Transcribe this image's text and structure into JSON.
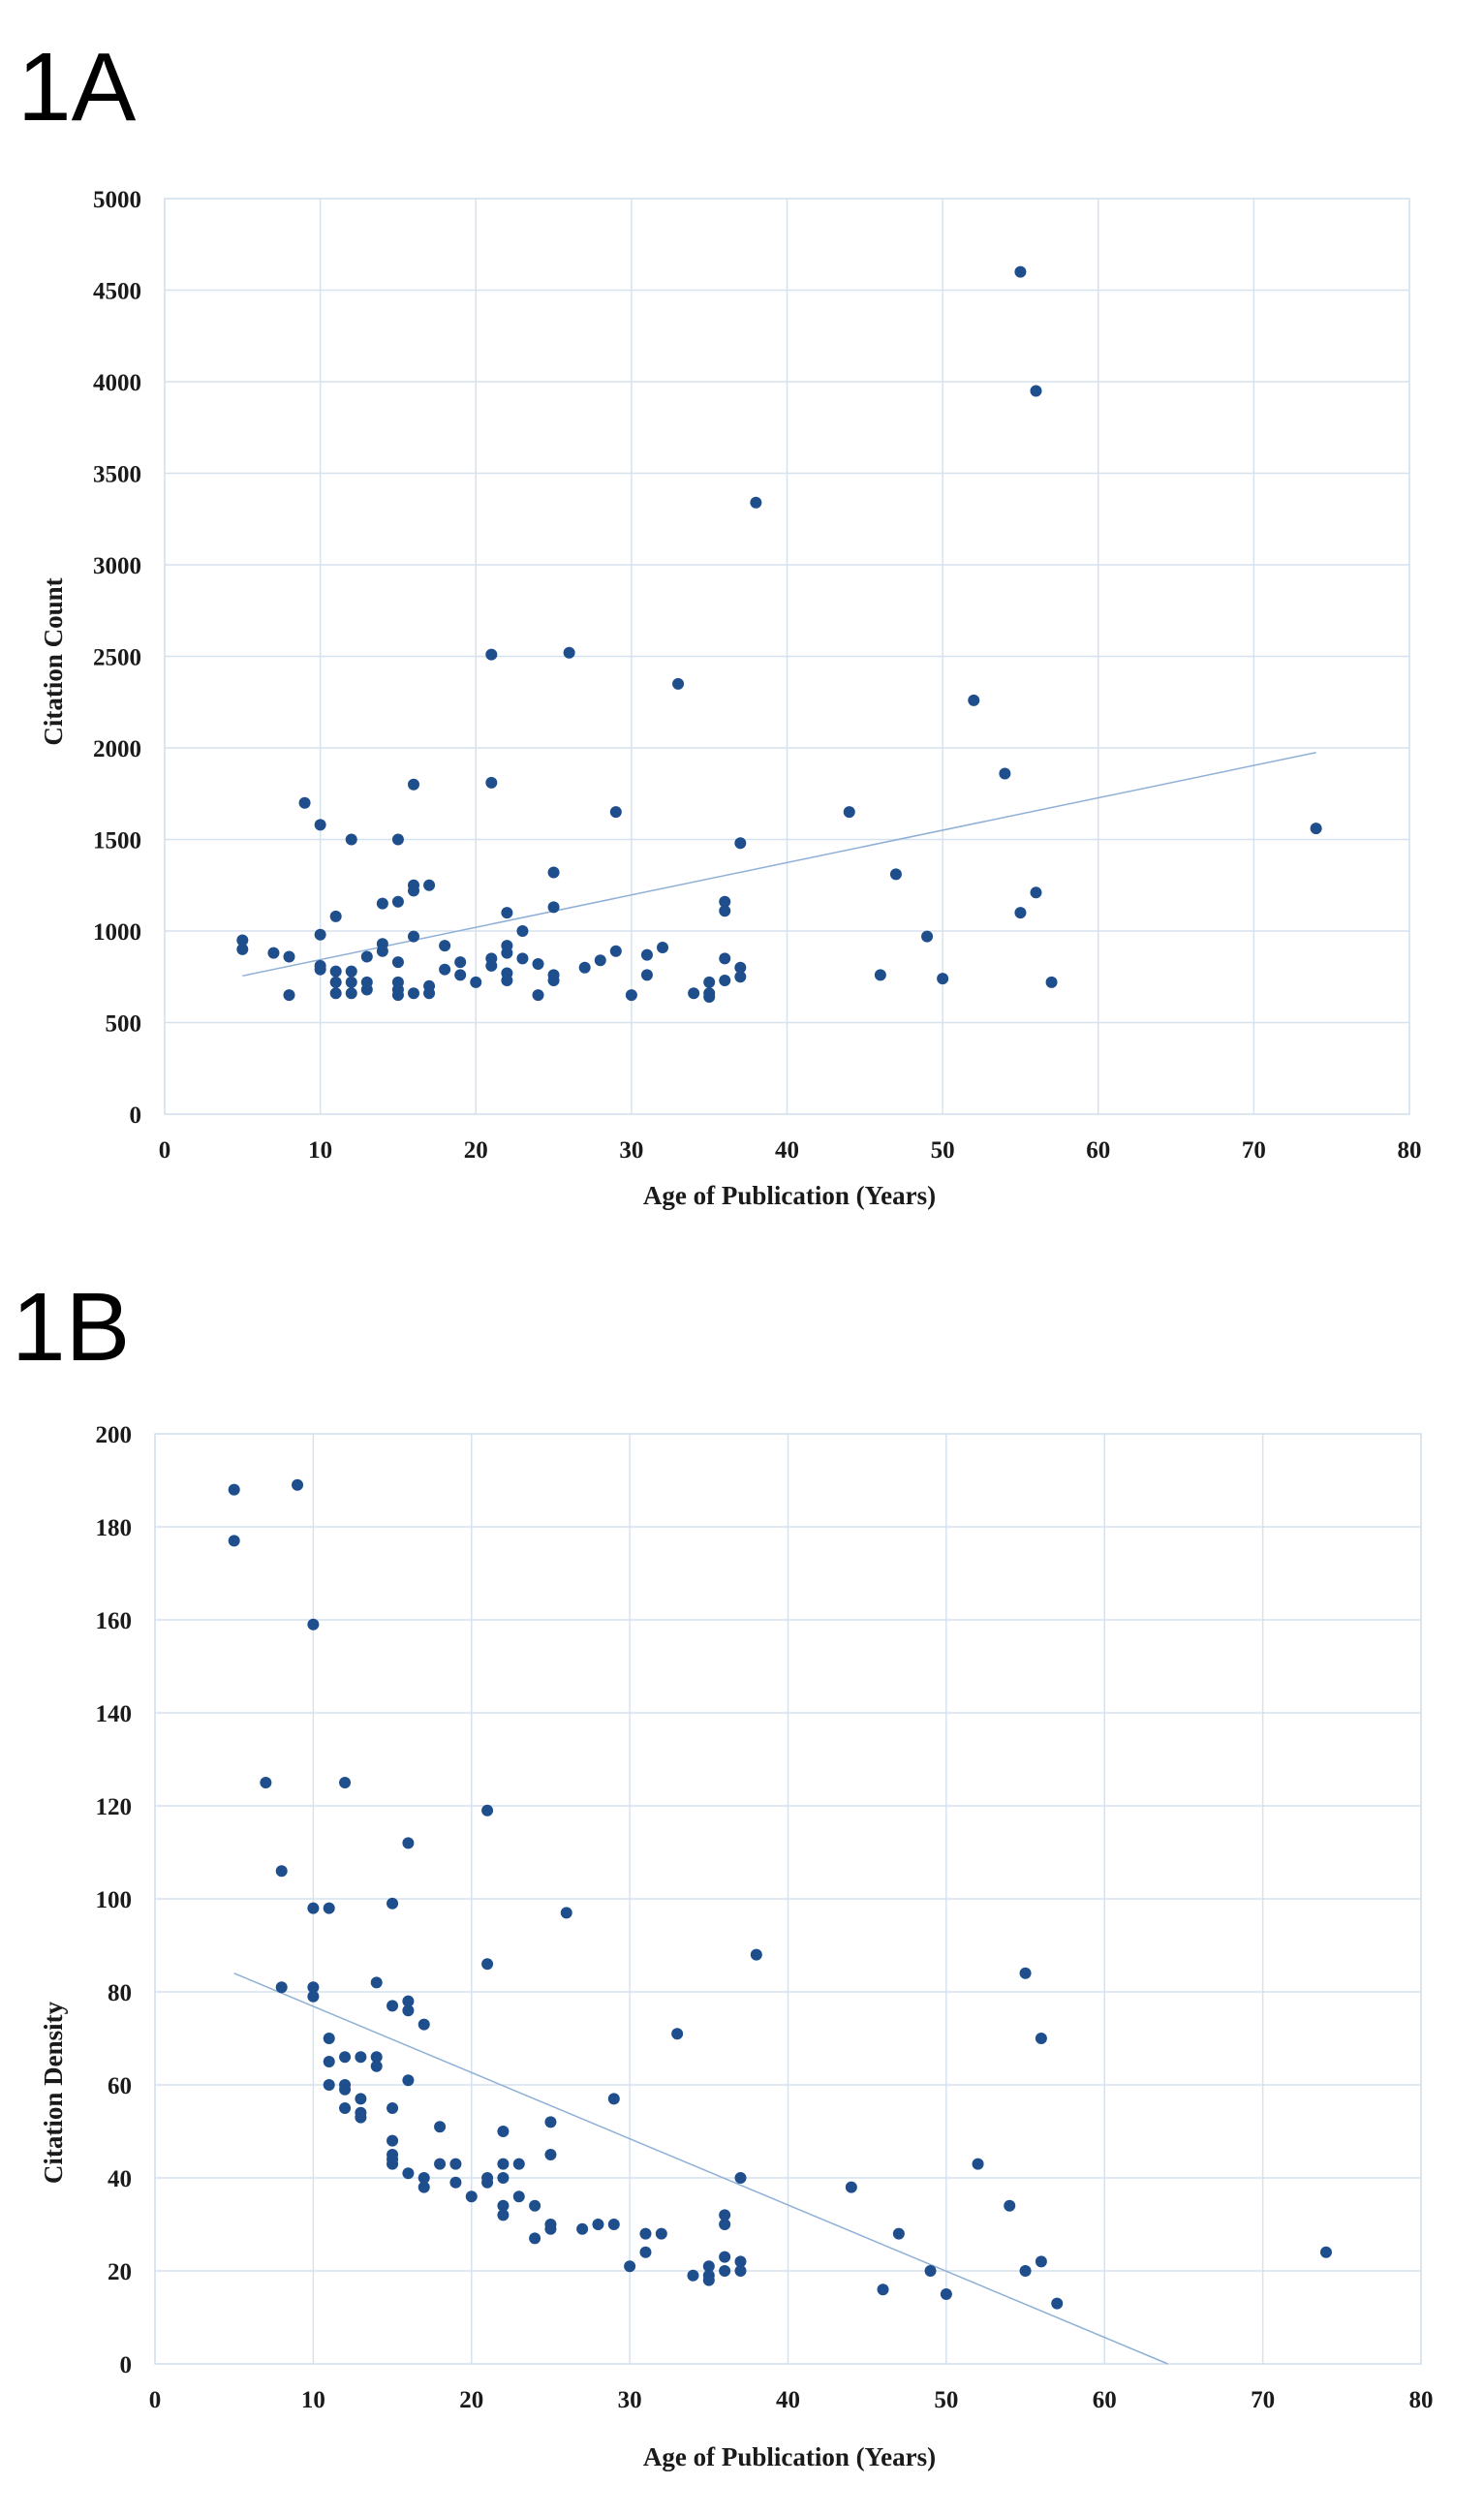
{
  "panels": {
    "a": "1A",
    "b": "1B"
  },
  "chart_data": [
    {
      "type": "scatter",
      "panel": "1A",
      "title": "",
      "xlabel": "Age of Publication  (Years)",
      "ylabel": "Citation Count",
      "xlim": [
        0,
        80
      ],
      "ylim": [
        0,
        5000
      ],
      "xticks": [
        0,
        10,
        20,
        30,
        40,
        50,
        60,
        70,
        80
      ],
      "yticks": [
        0,
        500,
        1000,
        1500,
        2000,
        2500,
        3000,
        3500,
        4000,
        4500,
        5000
      ],
      "grid": true,
      "marker_color": "#1f4e8c",
      "trendline": {
        "x": [
          5,
          74
        ],
        "y": [
          755,
          1975
        ],
        "color": "#8fb0d6"
      },
      "points": [
        [
          5,
          950
        ],
        [
          5,
          900
        ],
        [
          7,
          880
        ],
        [
          8,
          860
        ],
        [
          8,
          650
        ],
        [
          9,
          1700
        ],
        [
          10,
          1580
        ],
        [
          10,
          980
        ],
        [
          10,
          810
        ],
        [
          10,
          790
        ],
        [
          11,
          1080
        ],
        [
          11,
          780
        ],
        [
          11,
          720
        ],
        [
          11,
          660
        ],
        [
          12,
          1500
        ],
        [
          12,
          780
        ],
        [
          12,
          720
        ],
        [
          12,
          660
        ],
        [
          13,
          860
        ],
        [
          13,
          720
        ],
        [
          13,
          680
        ],
        [
          14,
          1150
        ],
        [
          14,
          930
        ],
        [
          14,
          890
        ],
        [
          15,
          1500
        ],
        [
          15,
          1160
        ],
        [
          15,
          830
        ],
        [
          15,
          720
        ],
        [
          15,
          680
        ],
        [
          15,
          650
        ],
        [
          16,
          1800
        ],
        [
          16,
          1250
        ],
        [
          16,
          1220
        ],
        [
          16,
          970
        ],
        [
          16,
          660
        ],
        [
          17,
          1250
        ],
        [
          17,
          700
        ],
        [
          17,
          660
        ],
        [
          18,
          920
        ],
        [
          18,
          790
        ],
        [
          19,
          830
        ],
        [
          19,
          760
        ],
        [
          20,
          720
        ],
        [
          21,
          2510
        ],
        [
          21,
          1810
        ],
        [
          21,
          850
        ],
        [
          21,
          810
        ],
        [
          22,
          1100
        ],
        [
          22,
          920
        ],
        [
          22,
          880
        ],
        [
          22,
          770
        ],
        [
          22,
          730
        ],
        [
          23,
          1000
        ],
        [
          23,
          850
        ],
        [
          24,
          820
        ],
        [
          24,
          650
        ],
        [
          25,
          1320
        ],
        [
          25,
          1130
        ],
        [
          25,
          760
        ],
        [
          25,
          730
        ],
        [
          26,
          2520
        ],
        [
          27,
          800
        ],
        [
          28,
          840
        ],
        [
          29,
          1650
        ],
        [
          29,
          890
        ],
        [
          30,
          650
        ],
        [
          31,
          870
        ],
        [
          31,
          760
        ],
        [
          32,
          910
        ],
        [
          33,
          2350
        ],
        [
          34,
          660
        ],
        [
          35,
          720
        ],
        [
          35,
          660
        ],
        [
          35,
          640
        ],
        [
          36,
          1160
        ],
        [
          36,
          1110
        ],
        [
          36,
          850
        ],
        [
          36,
          730
        ],
        [
          37,
          1480
        ],
        [
          37,
          800
        ],
        [
          37,
          750
        ],
        [
          38,
          3340
        ],
        [
          44,
          1650
        ],
        [
          46,
          760
        ],
        [
          47,
          1310
        ],
        [
          49,
          970
        ],
        [
          50,
          740
        ],
        [
          52,
          2260
        ],
        [
          54,
          1860
        ],
        [
          55,
          4600
        ],
        [
          55,
          1100
        ],
        [
          56,
          3950
        ],
        [
          56,
          1210
        ],
        [
          57,
          720
        ],
        [
          74,
          1560
        ]
      ]
    },
    {
      "type": "scatter",
      "panel": "1B",
      "title": "",
      "xlabel": "Age of Publication  (Years)",
      "ylabel": "Citation Density",
      "xlim": [
        0,
        80
      ],
      "ylim": [
        0,
        200
      ],
      "xticks": [
        0,
        10,
        20,
        30,
        40,
        50,
        60,
        70,
        80
      ],
      "yticks": [
        0,
        20,
        40,
        60,
        80,
        100,
        120,
        140,
        160,
        180,
        200
      ],
      "grid": true,
      "marker_color": "#1f4e8c",
      "trendline": {
        "x": [
          5,
          64
        ],
        "y": [
          84,
          0
        ],
        "color": "#8fb0d6"
      },
      "points": [
        [
          5,
          188
        ],
        [
          5,
          177
        ],
        [
          7,
          125
        ],
        [
          8,
          106
        ],
        [
          8,
          81
        ],
        [
          9,
          189
        ],
        [
          10,
          159
        ],
        [
          10,
          98
        ],
        [
          10,
          81
        ],
        [
          10,
          79
        ],
        [
          11,
          98
        ],
        [
          11,
          70
        ],
        [
          11,
          65
        ],
        [
          11,
          60
        ],
        [
          12,
          125
        ],
        [
          12,
          66
        ],
        [
          12,
          60
        ],
        [
          12,
          59
        ],
        [
          12,
          55
        ],
        [
          13,
          66
        ],
        [
          13,
          57
        ],
        [
          13,
          54
        ],
        [
          13,
          53
        ],
        [
          14,
          82
        ],
        [
          14,
          66
        ],
        [
          14,
          64
        ],
        [
          15,
          99
        ],
        [
          15,
          77
        ],
        [
          15,
          55
        ],
        [
          15,
          48
        ],
        [
          15,
          45
        ],
        [
          15,
          44
        ],
        [
          15,
          43
        ],
        [
          16,
          112
        ],
        [
          16,
          78
        ],
        [
          16,
          76
        ],
        [
          16,
          61
        ],
        [
          16,
          41
        ],
        [
          17,
          73
        ],
        [
          17,
          40
        ],
        [
          17,
          38
        ],
        [
          18,
          51
        ],
        [
          18,
          43
        ],
        [
          19,
          43
        ],
        [
          19,
          39
        ],
        [
          20,
          36
        ],
        [
          21,
          119
        ],
        [
          21,
          86
        ],
        [
          21,
          40
        ],
        [
          21,
          39
        ],
        [
          22,
          50
        ],
        [
          22,
          43
        ],
        [
          22,
          40
        ],
        [
          22,
          34
        ],
        [
          22,
          32
        ],
        [
          23,
          43
        ],
        [
          23,
          36
        ],
        [
          24,
          34
        ],
        [
          24,
          27
        ],
        [
          25,
          52
        ],
        [
          25,
          45
        ],
        [
          25,
          30
        ],
        [
          25,
          29
        ],
        [
          26,
          97
        ],
        [
          27,
          29
        ],
        [
          28,
          30
        ],
        [
          29,
          57
        ],
        [
          29,
          30
        ],
        [
          30,
          21
        ],
        [
          31,
          28
        ],
        [
          31,
          24
        ],
        [
          32,
          28
        ],
        [
          33,
          71
        ],
        [
          34,
          19
        ],
        [
          35,
          21
        ],
        [
          35,
          19
        ],
        [
          35,
          18
        ],
        [
          36,
          32
        ],
        [
          36,
          30
        ],
        [
          36,
          23
        ],
        [
          36,
          20
        ],
        [
          37,
          40
        ],
        [
          37,
          22
        ],
        [
          37,
          20
        ],
        [
          38,
          88
        ],
        [
          44,
          38
        ],
        [
          46,
          16
        ],
        [
          47,
          28
        ],
        [
          49,
          20
        ],
        [
          50,
          15
        ],
        [
          52,
          43
        ],
        [
          54,
          34
        ],
        [
          55,
          84
        ],
        [
          55,
          20
        ],
        [
          56,
          70
        ],
        [
          56,
          22
        ],
        [
          57,
          13
        ],
        [
          74,
          24
        ]
      ]
    }
  ]
}
